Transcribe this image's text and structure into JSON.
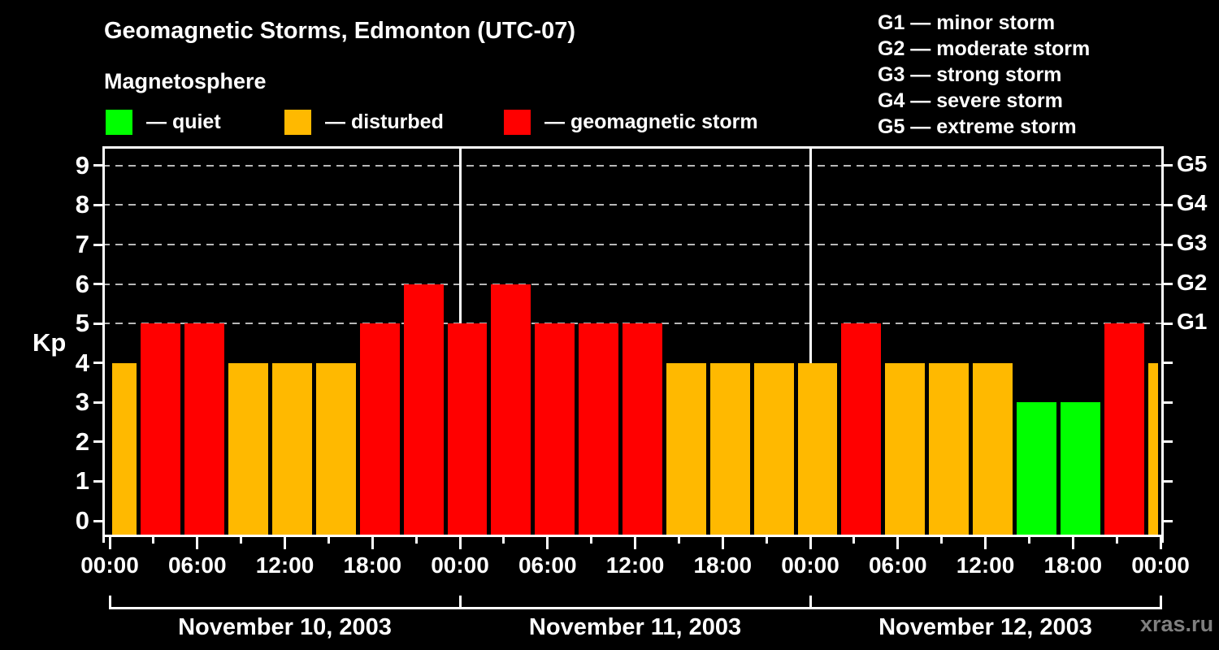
{
  "header": {
    "title": "Geomagnetic Storms, Edmonton (UTC-07)",
    "subtitle": "Magnetosphere"
  },
  "legend": {
    "items": [
      {
        "label": "— quiet",
        "status": "quiet",
        "color": "#00ff00"
      },
      {
        "label": "— disturbed",
        "status": "disturbed",
        "color": "#ffb900"
      },
      {
        "label": "— geomagnetic storm",
        "status": "storm",
        "color": "#ff0000"
      }
    ]
  },
  "storm_scale_legend": {
    "items": [
      {
        "label": "G1 — minor storm"
      },
      {
        "label": "G2 — moderate storm"
      },
      {
        "label": "G3 — strong storm"
      },
      {
        "label": "G4 — severe storm"
      },
      {
        "label": "G5 — extreme storm"
      }
    ]
  },
  "watermark": "xras.ru",
  "chart_data": {
    "type": "bar",
    "title": "Geomagnetic Storms, Edmonton (UTC-07)",
    "subtitle": "Magnetosphere",
    "ylabel": "Kp",
    "y_range": [
      -0.35,
      9.45
    ],
    "y_ticks": [
      0,
      1,
      2,
      3,
      4,
      5,
      6,
      7,
      8,
      9
    ],
    "gridlines_kp": [
      5,
      6,
      7,
      8,
      9
    ],
    "grid_style": "dashed",
    "right_axis_labels": [
      {
        "kp": 5,
        "label": "G1"
      },
      {
        "kp": 6,
        "label": "G2"
      },
      {
        "kp": 7,
        "label": "G3"
      },
      {
        "kp": 8,
        "label": "G4"
      },
      {
        "kp": 9,
        "label": "G5"
      }
    ],
    "x_hours_range": [
      0,
      72
    ],
    "x_major_ticks": [
      {
        "hour": 0,
        "label": "00:00"
      },
      {
        "hour": 6,
        "label": "06:00"
      },
      {
        "hour": 12,
        "label": "12:00"
      },
      {
        "hour": 18,
        "label": "18:00"
      },
      {
        "hour": 24,
        "label": "00:00"
      },
      {
        "hour": 30,
        "label": "06:00"
      },
      {
        "hour": 36,
        "label": "12:00"
      },
      {
        "hour": 42,
        "label": "18:00"
      },
      {
        "hour": 48,
        "label": "00:00"
      },
      {
        "hour": 54,
        "label": "06:00"
      },
      {
        "hour": 60,
        "label": "12:00"
      },
      {
        "hour": 66,
        "label": "18:00"
      },
      {
        "hour": 72,
        "label": "00:00"
      }
    ],
    "x_minor_tick_hours": [
      3,
      9,
      15,
      21,
      27,
      33,
      39,
      45,
      51,
      57,
      63,
      69
    ],
    "day_separator_hours": [
      24,
      48
    ],
    "days": [
      {
        "label": "November 10, 2003",
        "start_hour": 0,
        "end_hour": 24
      },
      {
        "label": "November 11, 2003",
        "start_hour": 24,
        "end_hour": 48
      },
      {
        "label": "November 12, 2003",
        "start_hour": 48,
        "end_hour": 72
      }
    ],
    "colors": {
      "quiet": "#00ff00",
      "disturbed": "#ffb900",
      "storm": "#ff0000"
    },
    "bars": [
      {
        "start_hour": 0,
        "end_hour": 2,
        "kp": 4,
        "status": "disturbed"
      },
      {
        "start_hour": 2,
        "end_hour": 5,
        "kp": 5,
        "status": "storm"
      },
      {
        "start_hour": 5,
        "end_hour": 8,
        "kp": 5,
        "status": "storm"
      },
      {
        "start_hour": 8,
        "end_hour": 11,
        "kp": 4,
        "status": "disturbed"
      },
      {
        "start_hour": 11,
        "end_hour": 14,
        "kp": 4,
        "status": "disturbed"
      },
      {
        "start_hour": 14,
        "end_hour": 17,
        "kp": 4,
        "status": "disturbed"
      },
      {
        "start_hour": 17,
        "end_hour": 20,
        "kp": 5,
        "status": "storm"
      },
      {
        "start_hour": 20,
        "end_hour": 23,
        "kp": 6,
        "status": "storm"
      },
      {
        "start_hour": 23,
        "end_hour": 26,
        "kp": 5,
        "status": "storm"
      },
      {
        "start_hour": 26,
        "end_hour": 29,
        "kp": 6,
        "status": "storm"
      },
      {
        "start_hour": 29,
        "end_hour": 32,
        "kp": 5,
        "status": "storm"
      },
      {
        "start_hour": 32,
        "end_hour": 35,
        "kp": 5,
        "status": "storm"
      },
      {
        "start_hour": 35,
        "end_hour": 38,
        "kp": 5,
        "status": "storm"
      },
      {
        "start_hour": 38,
        "end_hour": 41,
        "kp": 4,
        "status": "disturbed"
      },
      {
        "start_hour": 41,
        "end_hour": 44,
        "kp": 4,
        "status": "disturbed"
      },
      {
        "start_hour": 44,
        "end_hour": 47,
        "kp": 4,
        "status": "disturbed"
      },
      {
        "start_hour": 47,
        "end_hour": 50,
        "kp": 4,
        "status": "disturbed"
      },
      {
        "start_hour": 50,
        "end_hour": 53,
        "kp": 5,
        "status": "storm"
      },
      {
        "start_hour": 53,
        "end_hour": 56,
        "kp": 4,
        "status": "disturbed"
      },
      {
        "start_hour": 56,
        "end_hour": 59,
        "kp": 4,
        "status": "disturbed"
      },
      {
        "start_hour": 59,
        "end_hour": 62,
        "kp": 4,
        "status": "disturbed"
      },
      {
        "start_hour": 62,
        "end_hour": 65,
        "kp": 3,
        "status": "quiet"
      },
      {
        "start_hour": 65,
        "end_hour": 68,
        "kp": 3,
        "status": "quiet"
      },
      {
        "start_hour": 68,
        "end_hour": 71,
        "kp": 5,
        "status": "storm"
      },
      {
        "start_hour": 71,
        "end_hour": 72,
        "kp": 4,
        "status": "disturbed"
      }
    ]
  }
}
